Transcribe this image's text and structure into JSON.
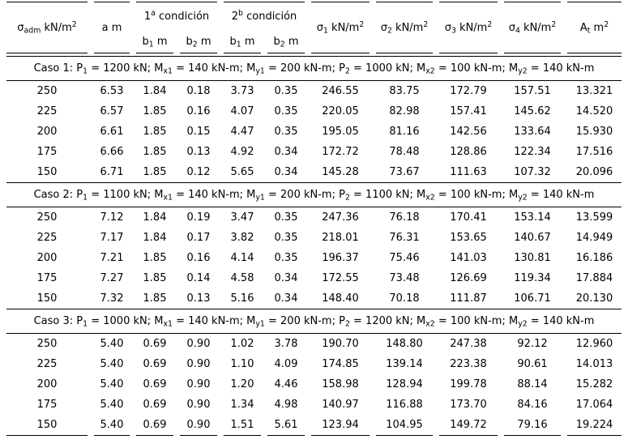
{
  "table": {
    "header": {
      "col_sigma_adm": [
        {
          "t": "σ"
        },
        {
          "sub": "adm"
        },
        {
          "t": " kN/m"
        },
        {
          "sup": "2"
        }
      ],
      "col_a": [
        {
          "t": "a m"
        }
      ],
      "group_cond1": [
        {
          "t": "1"
        },
        {
          "sup": "a"
        },
        {
          "t": " condición"
        }
      ],
      "group_cond2": [
        {
          "t": "2"
        },
        {
          "sup": "b"
        },
        {
          "t": " condición"
        }
      ],
      "col_b1": [
        {
          "t": "b"
        },
        {
          "sub": "1"
        },
        {
          "t": " m"
        }
      ],
      "col_b2": [
        {
          "t": "b"
        },
        {
          "sub": "2"
        },
        {
          "t": " m"
        }
      ],
      "col_sigma1": [
        {
          "t": "σ"
        },
        {
          "sub": "1"
        },
        {
          "t": " kN/m"
        },
        {
          "sup": "2"
        }
      ],
      "col_sigma2": [
        {
          "t": "σ"
        },
        {
          "sub": "2"
        },
        {
          "t": " kN/m"
        },
        {
          "sup": "2"
        }
      ],
      "col_sigma3": [
        {
          "t": "σ"
        },
        {
          "sub": "3"
        },
        {
          "t": " kN/m"
        },
        {
          "sup": "2"
        }
      ],
      "col_sigma4": [
        {
          "t": "σ"
        },
        {
          "sub": "4"
        },
        {
          "t": " kN/m"
        },
        {
          "sup": "2"
        }
      ],
      "col_At": [
        {
          "t": "A"
        },
        {
          "sub": "t"
        },
        {
          "t": " m"
        },
        {
          "sup": "2"
        }
      ]
    },
    "cases": [
      {
        "title": [
          {
            "t": "Caso 1: P"
          },
          {
            "sub": "1"
          },
          {
            "t": " = 1200 kN; M"
          },
          {
            "sub": "x1"
          },
          {
            "t": " = 140 kN-m; M"
          },
          {
            "sub": "y1"
          },
          {
            "t": " = 200 kN-m; P"
          },
          {
            "sub": "2"
          },
          {
            "t": " = 1000 kN; M"
          },
          {
            "sub": "x2"
          },
          {
            "t": " = 100 kN-m; M"
          },
          {
            "sub": "y2"
          },
          {
            "t": " = 140 kN-m"
          }
        ],
        "rows": [
          [
            "250",
            "6.53",
            "1.84",
            "0.18",
            "3.73",
            "0.35",
            "246.55",
            "83.75",
            "172.79",
            "157.51",
            "13.321"
          ],
          [
            "225",
            "6.57",
            "1.85",
            "0.16",
            "4.07",
            "0.35",
            "220.05",
            "82.98",
            "157.41",
            "145.62",
            "14.520"
          ],
          [
            "200",
            "6.61",
            "1.85",
            "0.15",
            "4.47",
            "0.35",
            "195.05",
            "81.16",
            "142.56",
            "133.64",
            "15.930"
          ],
          [
            "175",
            "6.66",
            "1.85",
            "0.13",
            "4.92",
            "0.34",
            "172.72",
            "78.48",
            "128.86",
            "122.34",
            "17.516"
          ],
          [
            "150",
            "6.71",
            "1.85",
            "0.12",
            "5.65",
            "0.34",
            "145.28",
            "73.67",
            "111.63",
            "107.32",
            "20.096"
          ]
        ]
      },
      {
        "title": [
          {
            "t": "Caso 2: P"
          },
          {
            "sub": "1"
          },
          {
            "t": " = 1100 kN; M"
          },
          {
            "sub": "x1"
          },
          {
            "t": " = 140 kN-m; M"
          },
          {
            "sub": "y1"
          },
          {
            "t": " = 200 kN-m; P"
          },
          {
            "sub": "2"
          },
          {
            "t": " = 1100 kN; M"
          },
          {
            "sub": "x2"
          },
          {
            "t": " = 100 kN-m; M"
          },
          {
            "sub": "y2"
          },
          {
            "t": " = 140 kN-m"
          }
        ],
        "rows": [
          [
            "250",
            "7.12",
            "1.84",
            "0.19",
            "3.47",
            "0.35",
            "247.36",
            "76.18",
            "170.41",
            "153.14",
            "13.599"
          ],
          [
            "225",
            "7.17",
            "1.84",
            "0.17",
            "3.82",
            "0.35",
            "218.01",
            "76.31",
            "153.65",
            "140.67",
            "14.949"
          ],
          [
            "200",
            "7.21",
            "1.85",
            "0.16",
            "4.14",
            "0.35",
            "196.37",
            "75.46",
            "141.03",
            "130.81",
            "16.186"
          ],
          [
            "175",
            "7.27",
            "1.85",
            "0.14",
            "4.58",
            "0.34",
            "172.55",
            "73.48",
            "126.69",
            "119.34",
            "17.884"
          ],
          [
            "150",
            "7.32",
            "1.85",
            "0.13",
            "5.16",
            "0.34",
            "148.40",
            "70.18",
            "111.87",
            "106.71",
            "20.130"
          ]
        ]
      },
      {
        "title": [
          {
            "t": "Caso 3: P"
          },
          {
            "sub": "1"
          },
          {
            "t": " = 1000 kN; M"
          },
          {
            "sub": "x1"
          },
          {
            "t": " = 140 kN-m; M"
          },
          {
            "sub": "y1"
          },
          {
            "t": " = 200 kN-m; P"
          },
          {
            "sub": "2"
          },
          {
            "t": " = 1200 kN; M"
          },
          {
            "sub": "x2"
          },
          {
            "t": " = 100 kN-m; M"
          },
          {
            "sub": "y2"
          },
          {
            "t": " = 140 kN-m"
          }
        ],
        "rows": [
          [
            "250",
            "5.40",
            "0.69",
            "0.90",
            "1.02",
            "3.78",
            "190.70",
            "148.80",
            "247.38",
            "92.12",
            "12.960"
          ],
          [
            "225",
            "5.40",
            "0.69",
            "0.90",
            "1.10",
            "4.09",
            "174.85",
            "139.14",
            "223.38",
            "90.61",
            "14.013"
          ],
          [
            "200",
            "5.40",
            "0.69",
            "0.90",
            "1.20",
            "4.46",
            "158.98",
            "128.94",
            "199.78",
            "88.14",
            "15.282"
          ],
          [
            "175",
            "5.40",
            "0.69",
            "0.90",
            "1.34",
            "4.98",
            "140.97",
            "116.88",
            "173.70",
            "84.16",
            "17.064"
          ],
          [
            "150",
            "5.40",
            "0.69",
            "0.90",
            "1.51",
            "5.61",
            "123.94",
            "104.95",
            "149.72",
            "79.16",
            "19.224"
          ]
        ]
      }
    ]
  }
}
